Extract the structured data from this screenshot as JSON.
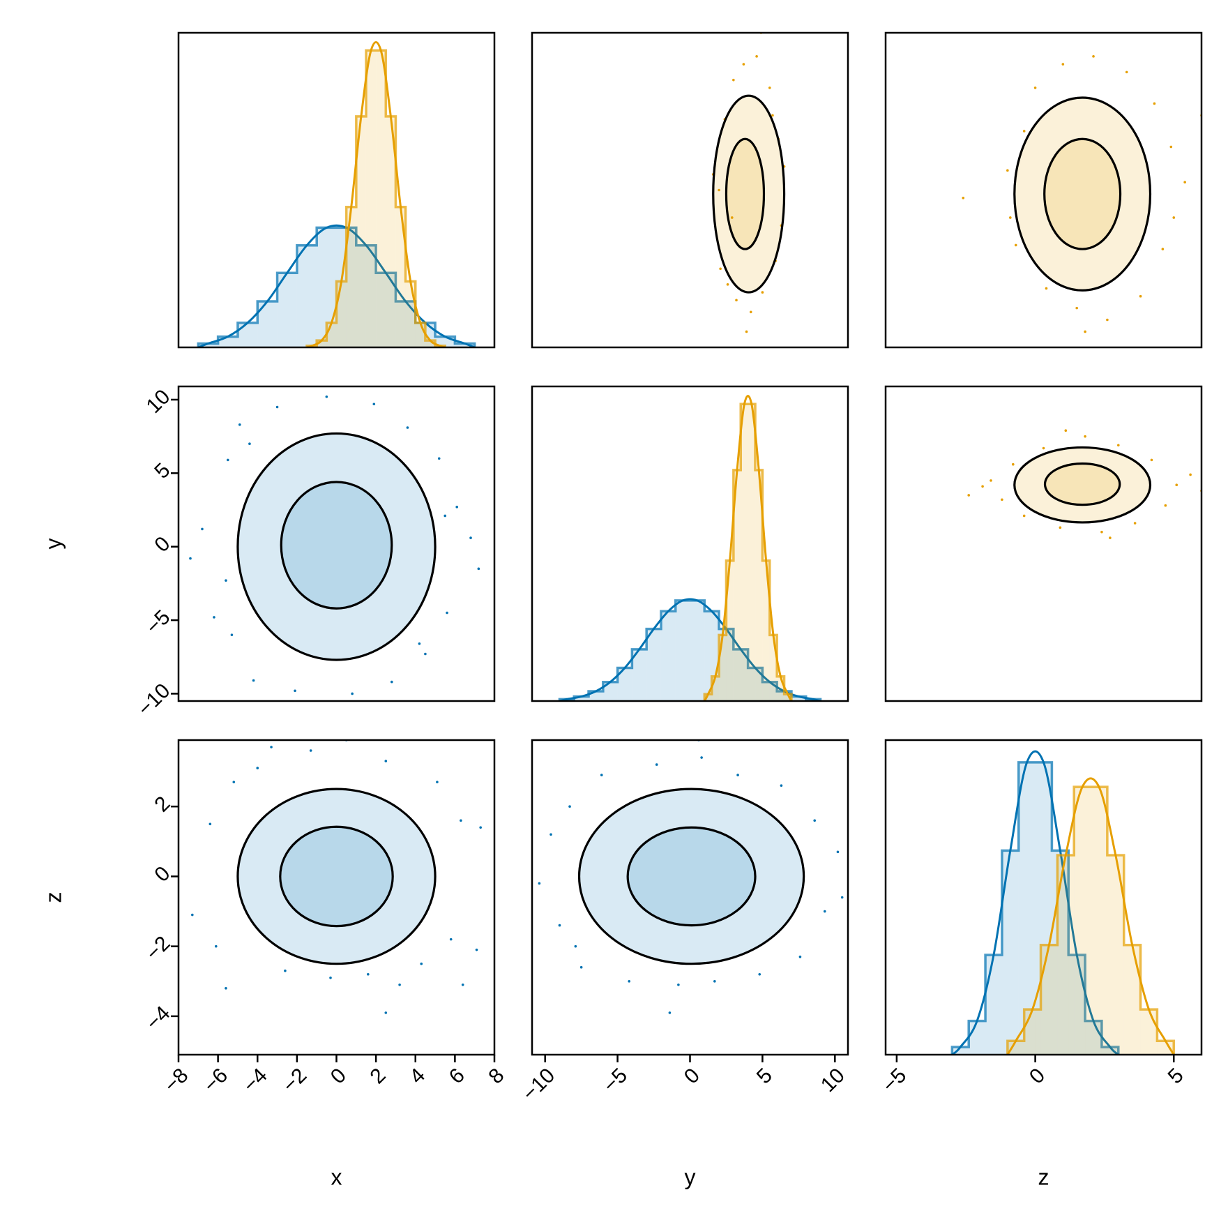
{
  "chart_data": {
    "type": "corner",
    "variables": [
      "x",
      "y",
      "z"
    ],
    "axes": [
      {
        "lim": [
          -8,
          8
        ],
        "row_lim": [
          -2,
          6
        ],
        "ticks": [
          {
            "value": -8,
            "label": "−8"
          },
          {
            "value": -6,
            "label": "−6"
          },
          {
            "value": -4,
            "label": "−4"
          },
          {
            "value": -2,
            "label": "−2"
          },
          0,
          2,
          4,
          6,
          8
        ]
      },
      {
        "lim": [
          -10.9,
          10.9
        ],
        "row_lim": [
          -10.5,
          10.9
        ],
        "ticks": [
          {
            "value": -10,
            "label": "−10"
          },
          {
            "value": -5,
            "label": "−5"
          },
          0,
          5,
          10
        ]
      },
      {
        "lim": [
          -5.4,
          6.0
        ],
        "row_lim": [
          -5.1,
          3.9
        ],
        "ticks": [
          {
            "value": -5,
            "label": "−5"
          },
          0,
          5
        ],
        "row_ticks": [
          {
            "value": -4,
            "label": "−4"
          },
          {
            "value": -2,
            "label": "−2"
          },
          0,
          2
        ]
      }
    ],
    "diag_ylim": [
      0,
      0.41
    ],
    "series": [
      {
        "color": "#0072b2",
        "hist": [
          {
            "bins": [
              -7,
              -6,
              -5,
              -4,
              -3,
              -2,
              -1,
              0,
              1,
              2,
              3,
              4,
              5,
              6,
              7
            ],
            "values": [
              0.005,
              0.014,
              0.032,
              0.06,
              0.097,
              0.133,
              0.156,
              0.156,
              0.133,
              0.097,
              0.06,
              0.032,
              0.014,
              0.005
            ]
          },
          {
            "bins": [
              -9,
              -8,
              -7,
              -6,
              -5,
              -4,
              -3,
              -2,
              -1,
              0,
              1,
              2,
              3,
              4,
              5,
              6,
              7,
              8,
              9
            ],
            "values": [
              0.0024,
              0.0059,
              0.0127,
              0.0248,
              0.0432,
              0.0674,
              0.094,
              0.117,
              0.131,
              0.131,
              0.117,
              0.094,
              0.0674,
              0.0432,
              0.0248,
              0.0127,
              0.0059,
              0.0024
            ]
          },
          {
            "bins": [
              -3,
              -2.4,
              -1.8,
              -1.2,
              -0.6,
              0,
              0.6,
              1.2,
              1.8,
              2.4,
              3
            ],
            "values": [
              0.01,
              0.044,
              0.13,
              0.266,
              0.381,
              0.381,
              0.266,
              0.13,
              0.044,
              0.01
            ]
          }
        ],
        "panels": [
          {
            "h": 0,
            "v": 1,
            "contours": [
              {
                "cx": 0,
                "cy": 0,
                "rx": 5,
                "ry": 7.7
              },
              {
                "cx": 0,
                "cy": 0.1,
                "rx": 2.8,
                "ry": 4.3
              }
            ],
            "h_values": [
              -6.8,
              -6.2,
              -5.5,
              -5.3,
              -4.9,
              -4.2,
              -3.0,
              -2.1,
              -0.5,
              0.8,
              1.9,
              2.8,
              3.6,
              4.5,
              5.2,
              5.6,
              6.1,
              6.8,
              -7.4,
              7.2,
              -5.6,
              5.5,
              -4.4,
              4.2
            ],
            "v_values": [
              1.2,
              -4.8,
              5.9,
              -6.0,
              8.3,
              -9.1,
              9.5,
              -9.8,
              10.2,
              -10.0,
              9.7,
              -9.2,
              8.1,
              -7.3,
              6.0,
              -4.5,
              2.7,
              0.6,
              -0.8,
              -1.5,
              -2.3,
              2.1,
              7.0,
              -6.6
            ]
          },
          {
            "h": 0,
            "v": 2,
            "contours": [
              {
                "cx": 0,
                "cy": 0,
                "rx": 5,
                "ry": 2.5
              },
              {
                "cx": 0,
                "cy": 0,
                "rx": 2.85,
                "ry": 1.42
              }
            ],
            "h_values": [
              -7.3,
              -6.4,
              -6.1,
              -5.6,
              -5.2,
              -4.0,
              -2.6,
              -1.3,
              -0.3,
              0.5,
              1.6,
              2.5,
              3.2,
              4.3,
              5.1,
              5.8,
              6.3,
              6.4,
              7.3,
              7.1,
              2.5,
              -3.3
            ],
            "v_values": [
              -1.1,
              1.5,
              -2.0,
              -3.2,
              2.7,
              3.1,
              -2.7,
              3.6,
              -2.9,
              3.9,
              -2.8,
              3.3,
              -3.1,
              -2.5,
              2.7,
              -1.8,
              1.6,
              -3.1,
              1.4,
              -2.1,
              -3.9,
              3.7
            ]
          },
          {
            "h": 1,
            "v": 2,
            "contours": [
              {
                "cx": 0.1,
                "cy": 0,
                "rx": 7.75,
                "ry": 2.5
              },
              {
                "cx": 0.1,
                "cy": 0,
                "rx": 4.4,
                "ry": 1.4
              }
            ],
            "h_values": [
              -10.4,
              -9.6,
              -9.0,
              -8.3,
              -7.5,
              -6.1,
              -4.2,
              -2.3,
              -0.8,
              0.8,
              1.7,
              3.3,
              4.8,
              6.3,
              7.6,
              8.6,
              9.3,
              10.2,
              10.5,
              -1.4,
              0.6,
              -7.9
            ],
            "v_values": [
              -0.2,
              1.2,
              -1.4,
              2.0,
              -2.6,
              2.9,
              -3.0,
              3.2,
              -3.1,
              3.4,
              -3.0,
              2.9,
              -2.8,
              2.6,
              -2.3,
              1.6,
              -1.0,
              0.7,
              -0.6,
              -3.9,
              3.9,
              -2.0
            ]
          }
        ]
      },
      {
        "color": "#e69f00",
        "hist": [
          {
            "bins": [
              -1.5,
              -1,
              -0.5,
              0,
              0.5,
              1,
              1.5,
              2,
              2.5,
              3,
              3.5,
              4,
              4.5,
              5,
              5.5
            ],
            "values": [
              0.002,
              0.009,
              0.032,
              0.086,
              0.183,
              0.301,
              0.387,
              0.387,
              0.301,
              0.183,
              0.086,
              0.032,
              0.009,
              0.002
            ]
          },
          {
            "bins": [
              1,
              1.5,
              2,
              2.5,
              3,
              3.5,
              4,
              4.5,
              5,
              5.5,
              6,
              6.5,
              7
            ],
            "values": [
              0.009,
              0.032,
              0.086,
              0.183,
              0.301,
              0.387,
              0.387,
              0.301,
              0.183,
              0.086,
              0.032,
              0.009
            ]
          },
          {
            "bins": [
              -1,
              -0.4,
              0.2,
              0.8,
              1.4,
              2,
              2.6,
              3.2,
              3.8,
              4.4,
              5
            ],
            "values": [
              0.018,
              0.059,
              0.143,
              0.26,
              0.349,
              0.349,
              0.26,
              0.143,
              0.059,
              0.018
            ]
          }
        ],
        "panels": [
          {
            "h": 1,
            "v": 0,
            "contours": [
              {
                "cx": 4.05,
                "cy": 1.9,
                "rx": 2.45,
                "ry": 2.5
              },
              {
                "cx": 3.8,
                "cy": 1.9,
                "rx": 1.3,
                "ry": 1.4
              }
            ],
            "h_values": [
              2.1,
              2.4,
              2.6,
              3.0,
              3.2,
              3.7,
              4.2,
              4.6,
              5.0,
              5.5,
              5.9,
              6.1,
              6.3,
              2.0,
              6.5,
              1.6,
              4.9,
              3.9,
              2.9,
              5.7
            ],
            "v_values": [
              0.0,
              3.8,
              -0.4,
              4.8,
              -0.8,
              5.2,
              -1.1,
              5.4,
              -0.6,
              4.6,
              0.2,
              3.3,
              1.1,
              2.0,
              2.6,
              2.4,
              6.0,
              -1.6,
              1.3,
              3.9
            ]
          },
          {
            "h": 2,
            "v": 0,
            "contours": [
              {
                "cx": 1.7,
                "cy": 1.9,
                "rx": 2.45,
                "ry": 2.45
              },
              {
                "cx": 1.7,
                "cy": 1.9,
                "rx": 1.37,
                "ry": 1.4
              }
            ],
            "h_values": [
              -2.6,
              -1.0,
              -0.7,
              -0.4,
              0.0,
              0.4,
              1.0,
              1.5,
              2.1,
              2.6,
              3.3,
              3.8,
              4.3,
              4.6,
              4.9,
              5.4,
              5.0,
              -0.9,
              6.0,
              1.8
            ],
            "v_values": [
              1.8,
              2.5,
              0.6,
              3.5,
              4.6,
              -0.5,
              5.2,
              -1.0,
              5.4,
              -1.3,
              5.0,
              -0.7,
              4.2,
              0.5,
              3.1,
              2.2,
              1.3,
              1.3,
              3.9,
              -1.6
            ]
          },
          {
            "h": 2,
            "v": 1,
            "contours": [
              {
                "cx": 1.7,
                "cy": 4.2,
                "rx": 2.45,
                "ry": 2.55
              },
              {
                "cx": 1.7,
                "cy": 4.25,
                "rx": 1.35,
                "ry": 1.4
              }
            ],
            "h_values": [
              -2.4,
              -1.6,
              -1.2,
              -0.8,
              -0.4,
              0.3,
              0.9,
              1.8,
              2.4,
              3.0,
              3.6,
              4.2,
              4.7,
              5.1,
              5.6,
              6.0,
              6.9,
              -1.9,
              1.1,
              2.7
            ],
            "v_values": [
              3.5,
              4.5,
              3.2,
              5.6,
              2.1,
              6.7,
              1.3,
              7.5,
              1.0,
              6.9,
              1.6,
              5.9,
              2.8,
              4.2,
              4.9,
              3.8,
              5.3,
              4.1,
              7.9,
              0.6
            ]
          }
        ]
      }
    ]
  }
}
